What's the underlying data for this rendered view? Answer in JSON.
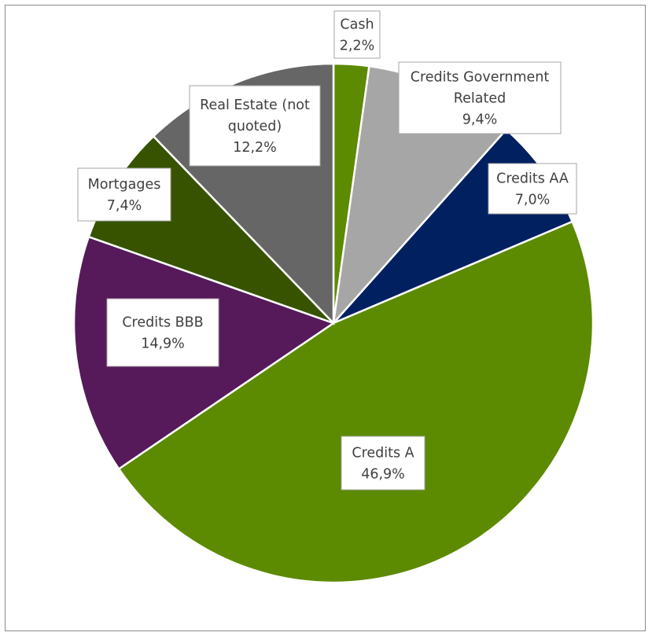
{
  "chart_data": {
    "type": "pie",
    "title": "",
    "start_angle_deg": 0,
    "direction": "clockwise",
    "legend": "none",
    "slices": [
      {
        "label": "Cash",
        "value": 2.2,
        "value_label": "2,2%",
        "color": "#5c8a00"
      },
      {
        "label": "Credits Government Related",
        "value": 9.4,
        "value_label": "9,4%",
        "color": "#a6a6a6"
      },
      {
        "label": "Credits AA",
        "value": 7.0,
        "value_label": "7,0%",
        "color": "#002060"
      },
      {
        "label": "Credits A",
        "value": 46.9,
        "value_label": "46,9%",
        "color": "#5c8a00"
      },
      {
        "label": "Credits BBB",
        "value": 14.9,
        "value_label": "14,9%",
        "color": "#561a5a"
      },
      {
        "label": "Mortgages",
        "value": 7.4,
        "value_label": "7,4%",
        "color": "#375300"
      },
      {
        "label": "Real Estate (not quoted)",
        "value": 12.2,
        "value_label": "12,2%",
        "color": "#666666"
      }
    ]
  }
}
